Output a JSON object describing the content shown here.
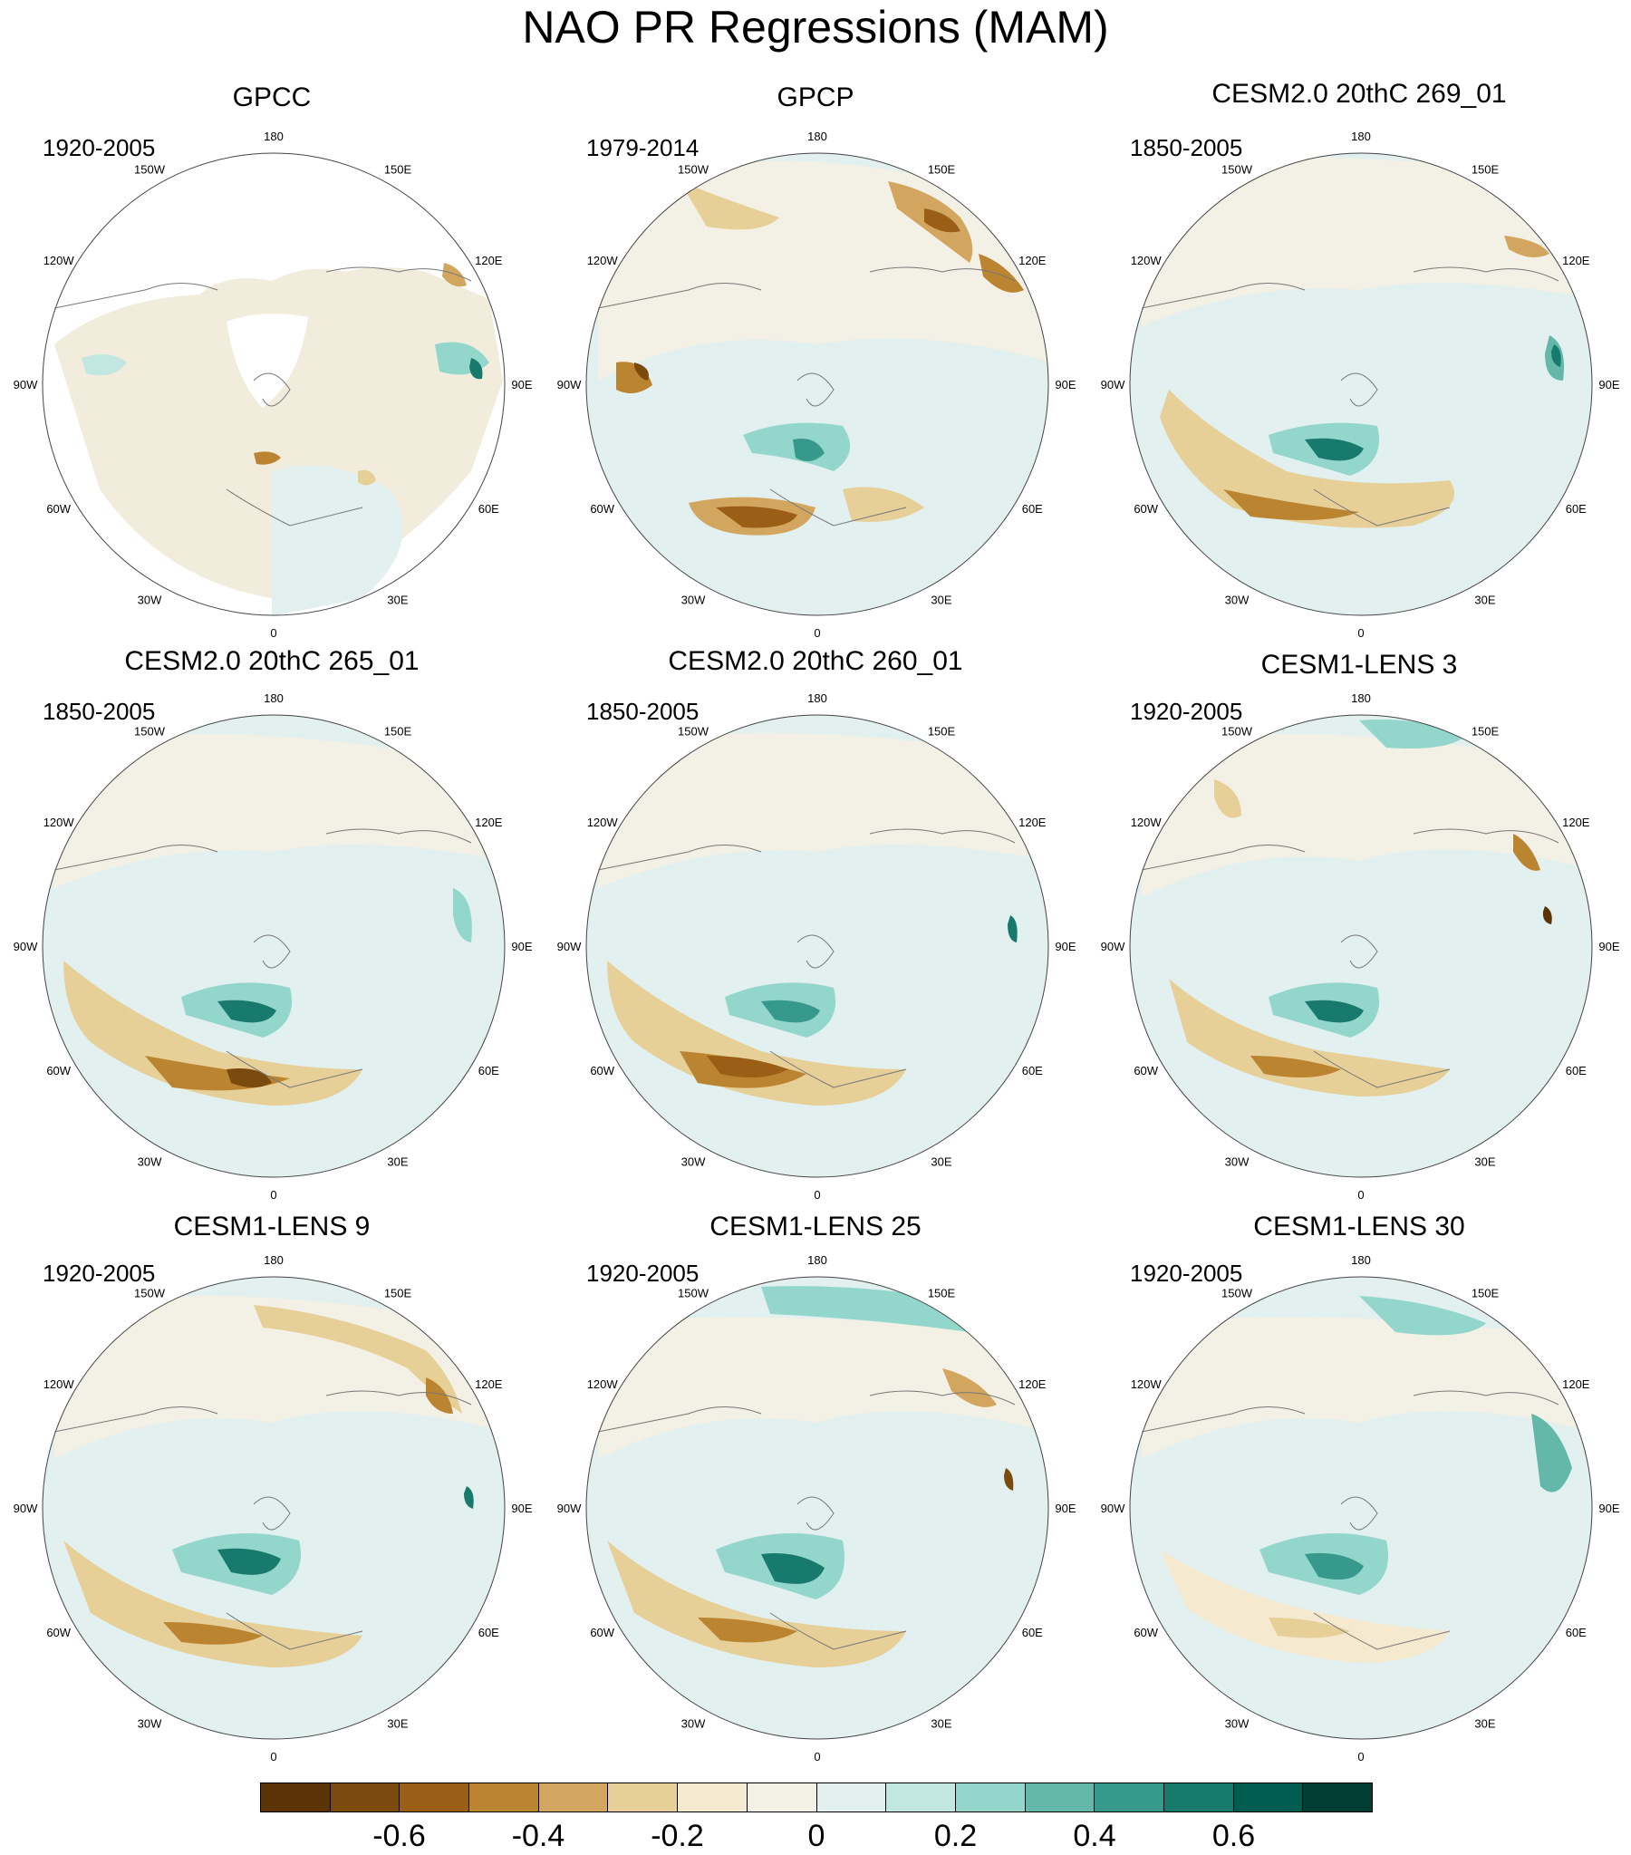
{
  "title": "NAO PR Regressions (MAM)",
  "longitude_labels": [
    "180",
    "150E",
    "120E",
    "90E",
    "60E",
    "30E",
    "0",
    "30W",
    "60W",
    "90W",
    "120W",
    "150W"
  ],
  "panels": [
    {
      "title": "GPCC",
      "period": "1920-2005"
    },
    {
      "title": "GPCP",
      "period": "1979-2014"
    },
    {
      "title": "CESM2.0 20thC 269_01",
      "period": "1850-2005"
    },
    {
      "title": "CESM2.0 20thC 265_01",
      "period": "1850-2005"
    },
    {
      "title": "CESM2.0 20thC 260_01",
      "period": "1850-2005"
    },
    {
      "title": "CESM1-LENS 3",
      "period": "1920-2005"
    },
    {
      "title": "CESM1-LENS 9",
      "period": "1920-2005"
    },
    {
      "title": "CESM1-LENS 25",
      "period": "1920-2005"
    },
    {
      "title": "CESM1-LENS 30",
      "period": "1920-2005"
    }
  ],
  "colorbar": {
    "colors": [
      "#5c3307",
      "#7b4a0f",
      "#9a5e17",
      "#bb8431",
      "#d3a660",
      "#e7cf98",
      "#f5e9cf",
      "#f3f0e5",
      "#e2f0ef",
      "#c1e7e0",
      "#93d6cb",
      "#63b8a9",
      "#36998b",
      "#187a6d",
      "#005c4e",
      "#013d32"
    ],
    "tick_labels": [
      "-0.6",
      "-0.4",
      "-0.2",
      "0",
      "0.2",
      "0.4",
      "0.6"
    ]
  },
  "chart_data": {
    "type": "heatmap",
    "title": "NAO PR Regressions (MAM)",
    "projection": "north polar stereographic",
    "color_levels": [
      -0.7,
      -0.6,
      -0.5,
      -0.4,
      -0.3,
      -0.2,
      -0.1,
      0,
      0.1,
      0.2,
      0.3,
      0.4,
      0.5,
      0.6,
      0.7
    ],
    "panels": [
      {
        "name": "GPCC",
        "period": "1920-2005",
        "note": "land-only data"
      },
      {
        "name": "GPCP",
        "period": "1979-2014"
      },
      {
        "name": "CESM2.0 20thC 269_01",
        "period": "1850-2005"
      },
      {
        "name": "CESM2.0 20thC 265_01",
        "period": "1850-2005"
      },
      {
        "name": "CESM2.0 20thC 260_01",
        "period": "1850-2005"
      },
      {
        "name": "CESM1-LENS 3",
        "period": "1920-2005"
      },
      {
        "name": "CESM1-LENS 9",
        "period": "1920-2005"
      },
      {
        "name": "CESM1-LENS 25",
        "period": "1920-2005"
      },
      {
        "name": "CESM1-LENS 30",
        "period": "1920-2005"
      }
    ]
  }
}
